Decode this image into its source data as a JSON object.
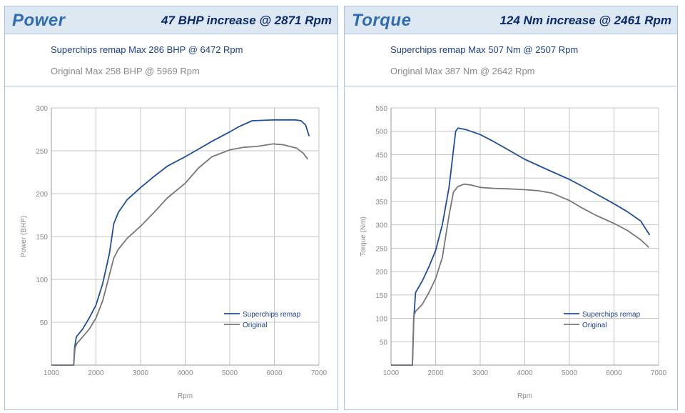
{
  "power": {
    "title": "Power",
    "subtitle": "47 BHP increase @ 2871 Rpm",
    "remap_info": "Superchips remap Max 286 BHP @ 6472 Rpm",
    "original_info": "Original Max 258 BHP @ 5969 Rpm",
    "chart_data": {
      "type": "line",
      "xlabel": "Rpm",
      "ylabel": "Power (BHP)",
      "xlim": [
        1000,
        7000
      ],
      "ylim": [
        0,
        300
      ],
      "x_ticks": [
        1000,
        2000,
        3000,
        4000,
        5000,
        6000,
        7000
      ],
      "y_ticks": [
        50,
        100,
        150,
        200,
        250,
        300
      ],
      "grid": true,
      "legend_position": "bottom-right",
      "series": [
        {
          "name": "Superchips remap",
          "color": "#1f4e9c",
          "x": [
            1000,
            1500,
            1520,
            1560,
            1700,
            1850,
            2000,
            2150,
            2300,
            2400,
            2500,
            2700,
            3000,
            3300,
            3600,
            4000,
            4300,
            4600,
            5000,
            5200,
            5500,
            6000,
            6300,
            6472,
            6600,
            6700,
            6780
          ],
          "y": [
            0,
            0,
            20,
            33,
            42,
            55,
            70,
            95,
            130,
            165,
            178,
            193,
            207,
            220,
            232,
            243,
            252,
            261,
            272,
            278,
            285,
            286,
            286,
            286,
            285,
            280,
            267
          ]
        },
        {
          "name": "Original",
          "color": "#777777",
          "x": [
            1000,
            1500,
            1530,
            1570,
            1700,
            1850,
            2000,
            2150,
            2300,
            2400,
            2500,
            2700,
            3000,
            3300,
            3600,
            4000,
            4300,
            4600,
            5000,
            5300,
            5600,
            5969,
            6200,
            6500,
            6650,
            6750
          ],
          "y": [
            0,
            0,
            20,
            25,
            33,
            42,
            55,
            75,
            105,
            125,
            135,
            148,
            162,
            178,
            195,
            212,
            230,
            243,
            251,
            254,
            255,
            258,
            257,
            253,
            247,
            240
          ]
        }
      ]
    }
  },
  "torque": {
    "title": "Torque",
    "subtitle": "124 Nm increase @ 2461 Rpm",
    "remap_info": "Superchips remap Max 507 Nm @ 2507 Rpm",
    "original_info": "Original Max 387 Nm @ 2642 Rpm",
    "chart_data": {
      "type": "line",
      "xlabel": "Rpm",
      "ylabel": "Torque (Nm)",
      "xlim": [
        1000,
        7000
      ],
      "ylim": [
        0,
        550
      ],
      "x_ticks": [
        1000,
        2000,
        3000,
        4000,
        5000,
        6000,
        7000
      ],
      "y_ticks": [
        50,
        100,
        150,
        200,
        250,
        300,
        350,
        400,
        450,
        500,
        550
      ],
      "grid": true,
      "legend_position": "bottom-right",
      "series": [
        {
          "name": "Superchips remap",
          "color": "#1f4e9c",
          "x": [
            1000,
            1480,
            1510,
            1550,
            1700,
            1850,
            2000,
            2150,
            2300,
            2400,
            2450,
            2507,
            2700,
            3000,
            3300,
            3600,
            4000,
            4300,
            4600,
            5000,
            5300,
            5600,
            6000,
            6300,
            6600,
            6800
          ],
          "y": [
            0,
            0,
            100,
            155,
            180,
            210,
            245,
            300,
            380,
            460,
            500,
            507,
            503,
            493,
            478,
            462,
            440,
            427,
            414,
            397,
            382,
            366,
            345,
            328,
            308,
            278
          ]
        },
        {
          "name": "Original",
          "color": "#777777",
          "x": [
            1000,
            1480,
            1510,
            1550,
            1700,
            1850,
            2000,
            2150,
            2300,
            2400,
            2500,
            2642,
            2800,
            3000,
            3300,
            3600,
            4000,
            4300,
            4600,
            5000,
            5300,
            5600,
            6000,
            6300,
            6600,
            6780
          ],
          "y": [
            0,
            0,
            105,
            115,
            130,
            155,
            185,
            230,
            320,
            370,
            382,
            387,
            385,
            380,
            378,
            377,
            375,
            373,
            368,
            352,
            335,
            320,
            303,
            288,
            268,
            252
          ]
        }
      ]
    }
  }
}
